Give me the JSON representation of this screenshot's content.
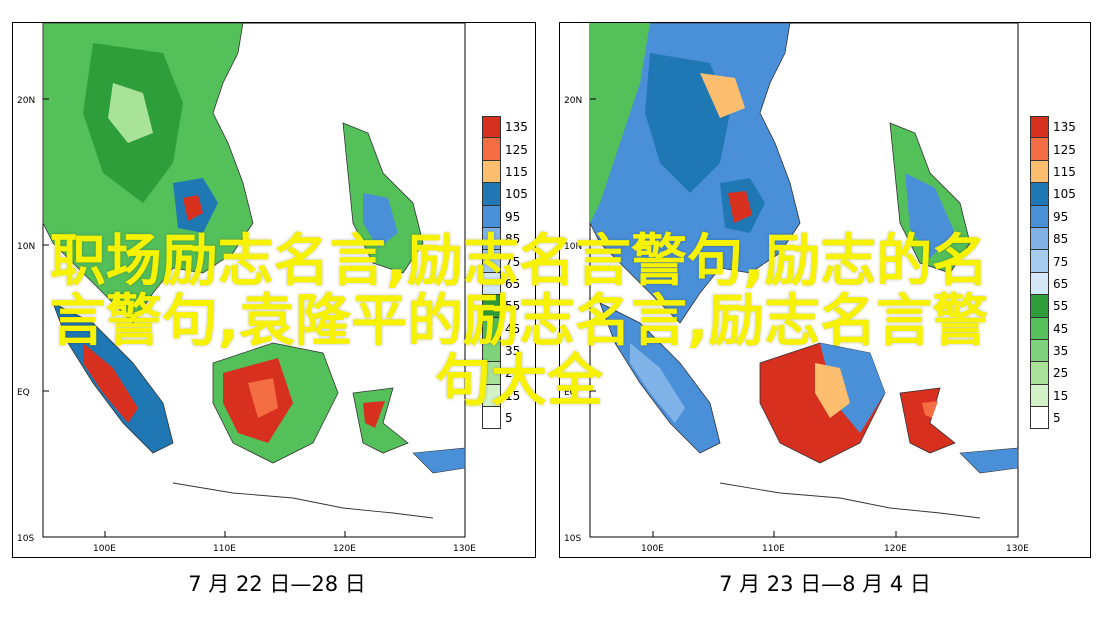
{
  "colors": {
    "c135": "#d7301f",
    "c125": "#f46d43",
    "c115": "#fdbf6f",
    "c105": "#1f78b4",
    "c95": "#4a90d9",
    "c85": "#7fb3e8",
    "c75": "#a6cdf0",
    "c65": "#d4e8f7",
    "c55": "#2e9e3a",
    "c45": "#54c05a",
    "c35": "#7ed37a",
    "c25": "#a9e39a",
    "c15": "#d3f2c8",
    "c5": "#ffffff",
    "coast": "#333333"
  },
  "maps": [
    {
      "lat_labels": [
        "20N",
        "10N",
        "EQ",
        "10S"
      ],
      "lon_labels": [
        "100E",
        "110E",
        "120E",
        "130E"
      ],
      "legend": [
        {
          "label": "135",
          "color_key": "c135"
        },
        {
          "label": "125",
          "color_key": "c125"
        },
        {
          "label": "115",
          "color_key": "c115"
        },
        {
          "label": "105",
          "color_key": "c105"
        },
        {
          "label": "95",
          "color_key": "c95"
        },
        {
          "label": "85",
          "color_key": "c85"
        },
        {
          "label": "75",
          "color_key": "c75"
        },
        {
          "label": "65",
          "color_key": "c65"
        },
        {
          "label": "55",
          "color_key": "c55"
        },
        {
          "label": "45",
          "color_key": "c45"
        },
        {
          "label": "35",
          "color_key": "c35"
        },
        {
          "label": "25",
          "color_key": "c25"
        },
        {
          "label": "15",
          "color_key": "c15"
        },
        {
          "label": "5",
          "color_key": "c5"
        }
      ],
      "caption": "7 月 22 日—28 日"
    },
    {
      "lat_labels": [
        "20N",
        "10N",
        "EQ",
        "10S"
      ],
      "lon_labels": [
        "100E",
        "110E",
        "120E",
        "130E"
      ],
      "legend": [
        {
          "label": "135",
          "color_key": "c135"
        },
        {
          "label": "125",
          "color_key": "c125"
        },
        {
          "label": "115",
          "color_key": "c115"
        },
        {
          "label": "105",
          "color_key": "c105"
        },
        {
          "label": "95",
          "color_key": "c95"
        },
        {
          "label": "85",
          "color_key": "c85"
        },
        {
          "label": "75",
          "color_key": "c75"
        },
        {
          "label": "65",
          "color_key": "c65"
        },
        {
          "label": "55",
          "color_key": "c55"
        },
        {
          "label": "45",
          "color_key": "c45"
        },
        {
          "label": "35",
          "color_key": "c35"
        },
        {
          "label": "25",
          "color_key": "c25"
        },
        {
          "label": "15",
          "color_key": "c15"
        },
        {
          "label": "5",
          "color_key": "c5"
        }
      ],
      "caption": "7 月 23 日—8 月 4 日"
    }
  ],
  "overlay_text": {
    "line1": "职场励志名言,励志名言警句,励志的名",
    "line2": "言警句,袁隆平的励志名言,励志名言警",
    "line3": "句大全"
  }
}
